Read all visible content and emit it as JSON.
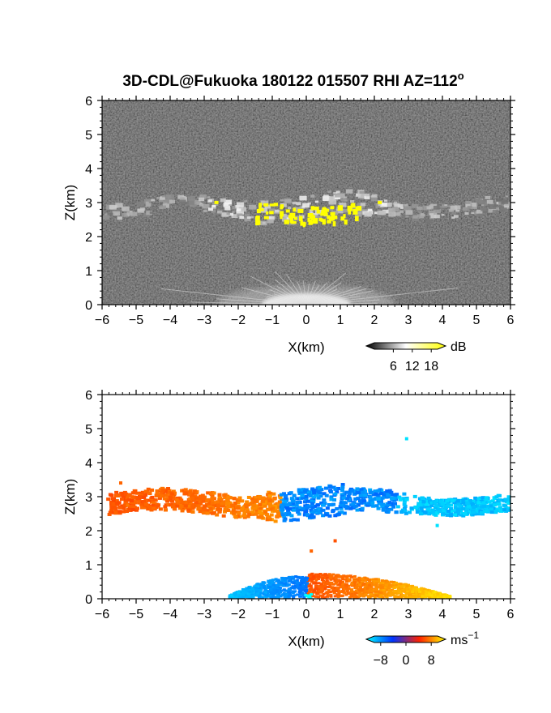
{
  "chart_data": [
    {
      "type": "heatmap",
      "title": "3D-CDL@Fukuoka 180122 015507 RHI AZ=112",
      "title_superscript": "o",
      "xlabel": "X(km)",
      "ylabel": "Z(km)",
      "xlim": [
        -6,
        6
      ],
      "ylim": [
        0,
        6
      ],
      "xticks": [
        -6,
        -5,
        -4,
        -3,
        -2,
        -1,
        0,
        1,
        2,
        3,
        4,
        5,
        6
      ],
      "yticks": [
        0,
        1,
        2,
        3,
        4,
        5,
        6
      ],
      "colorbar": {
        "unit": "dB",
        "ticks": [
          6,
          12,
          18
        ],
        "range": [
          0,
          20
        ],
        "colors": [
          "#000000",
          "#ffffff",
          "#ffff00"
        ]
      },
      "background": "#2a2a2a",
      "features": [
        {
          "name": "cloud layer",
          "x_range": [
            -6,
            6
          ],
          "z_center": 2.9,
          "thickness": 0.6
        },
        {
          "name": "strong echo",
          "x_range": [
            -1.5,
            1.5
          ],
          "z_center": 2.6,
          "color": "#ffff00"
        },
        {
          "name": "near-ground clutter",
          "x_range": [
            -2.5,
            2.5
          ],
          "z_range": [
            0,
            0.6
          ]
        }
      ]
    },
    {
      "type": "heatmap",
      "xlabel": "X(km)",
      "ylabel": "Z(km)",
      "xlim": [
        -6,
        6
      ],
      "ylim": [
        0,
        6
      ],
      "xticks": [
        -6,
        -5,
        -4,
        -3,
        -2,
        -1,
        0,
        1,
        2,
        3,
        4,
        5,
        6
      ],
      "yticks": [
        0,
        1,
        2,
        3,
        4,
        5,
        6
      ],
      "colorbar": {
        "unit": "ms",
        "unit_superscript": "−1",
        "ticks": [
          "−8",
          "0",
          "8"
        ],
        "range": [
          -10,
          10
        ],
        "colors": [
          "#00ffff",
          "#0033ff",
          "#ff2200",
          "#ffff00"
        ]
      },
      "features": [
        {
          "name": "cloud layer outbound",
          "x_range": [
            -6,
            -0.8
          ],
          "z_range": [
            2.4,
            3.5
          ],
          "velocity": 5
        },
        {
          "name": "cloud layer inbound",
          "x_range": [
            -0.8,
            6
          ],
          "z_range": [
            2.2,
            3.3
          ],
          "velocity": -6
        },
        {
          "name": "boundary layer",
          "x_range": [
            -2.3,
            4.2
          ],
          "z_range": [
            0,
            0.8
          ],
          "velocity_range": [
            -8,
            8
          ]
        }
      ]
    }
  ]
}
